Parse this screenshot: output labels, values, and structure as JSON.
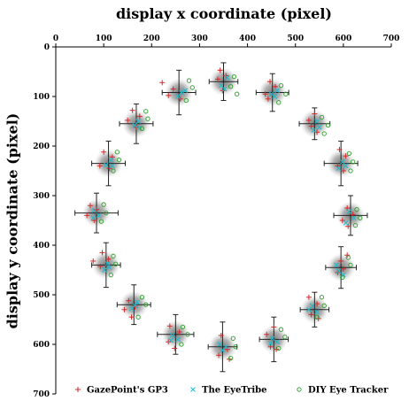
{
  "chart_data": {
    "type": "scatter",
    "xlabel": "display x coordinate (pixel)",
    "ylabel": "display y coordinate (pixel)",
    "xlim": [
      0,
      700
    ],
    "ylim": [
      0,
      700
    ],
    "y_inverted": true,
    "x_axis_position": "top",
    "x_ticks": [
      "0",
      "100",
      "200",
      "300",
      "400",
      "500",
      "600",
      "700"
    ],
    "y_ticks": [
      "0",
      "100",
      "200",
      "300",
      "400",
      "500",
      "600",
      "700"
    ],
    "grid": false,
    "legend_position": "bottom",
    "targets": [
      {
        "x": 350,
        "y": 70,
        "sdx": 30,
        "sdy": 38
      },
      {
        "x": 452,
        "y": 92,
        "sdx": 34,
        "sdy": 38
      },
      {
        "x": 540,
        "y": 155,
        "sdx": 32,
        "sdy": 32
      },
      {
        "x": 595,
        "y": 235,
        "sdx": 35,
        "sdy": 45
      },
      {
        "x": 615,
        "y": 340,
        "sdx": 35,
        "sdy": 40
      },
      {
        "x": 595,
        "y": 445,
        "sdx": 32,
        "sdy": 42
      },
      {
        "x": 540,
        "y": 530,
        "sdx": 30,
        "sdy": 35
      },
      {
        "x": 455,
        "y": 590,
        "sdx": 30,
        "sdy": 45
      },
      {
        "x": 348,
        "y": 605,
        "sdx": 30,
        "sdy": 50
      },
      {
        "x": 250,
        "y": 580,
        "sdx": 38,
        "sdy": 40
      },
      {
        "x": 163,
        "y": 520,
        "sdx": 35,
        "sdy": 40
      },
      {
        "x": 105,
        "y": 440,
        "sdx": 30,
        "sdy": 45
      },
      {
        "x": 85,
        "y": 335,
        "sdx": 45,
        "sdy": 40
      },
      {
        "x": 110,
        "y": 235,
        "sdx": 35,
        "sdy": 45
      },
      {
        "x": 168,
        "y": 155,
        "sdx": 35,
        "sdy": 40
      },
      {
        "x": 257,
        "y": 92,
        "sdx": 35,
        "sdy": 45
      }
    ],
    "series": [
      {
        "name": "GazePoint's GP3",
        "marker": "plus",
        "color": "#d62728",
        "points": [
          [
            343,
            47
          ],
          [
            355,
            58
          ],
          [
            338,
            65
          ],
          [
            348,
            88
          ],
          [
            447,
            70
          ],
          [
            458,
            80
          ],
          [
            437,
            95
          ],
          [
            443,
            105
          ],
          [
            540,
            135
          ],
          [
            528,
            148
          ],
          [
            533,
            160
          ],
          [
            545,
            172
          ],
          [
            592,
            207
          ],
          [
            605,
            220
          ],
          [
            588,
            240
          ],
          [
            600,
            250
          ],
          [
            608,
            325
          ],
          [
            620,
            338
          ],
          [
            598,
            350
          ],
          [
            610,
            362
          ],
          [
            608,
            420
          ],
          [
            595,
            432
          ],
          [
            588,
            455
          ],
          [
            600,
            448
          ],
          [
            528,
            505
          ],
          [
            545,
            518
          ],
          [
            533,
            540
          ],
          [
            548,
            548
          ],
          [
            455,
            565
          ],
          [
            440,
            580
          ],
          [
            448,
            605
          ],
          [
            460,
            610
          ],
          [
            345,
            582
          ],
          [
            358,
            610
          ],
          [
            340,
            622
          ],
          [
            362,
            630
          ],
          [
            238,
            563
          ],
          [
            258,
            575
          ],
          [
            235,
            595
          ],
          [
            248,
            608
          ],
          [
            152,
            512
          ],
          [
            165,
            525
          ],
          [
            143,
            530
          ],
          [
            158,
            545
          ],
          [
            97,
            415
          ],
          [
            110,
            428
          ],
          [
            78,
            432
          ],
          [
            93,
            443
          ],
          [
            72,
            320
          ],
          [
            85,
            328
          ],
          [
            65,
            340
          ],
          [
            80,
            350
          ],
          [
            100,
            212
          ],
          [
            118,
            222
          ],
          [
            92,
            240
          ],
          [
            112,
            245
          ],
          [
            160,
            128
          ],
          [
            175,
            140
          ],
          [
            150,
            148
          ],
          [
            168,
            162
          ],
          [
            222,
            72
          ],
          [
            245,
            85
          ],
          [
            235,
            98
          ],
          [
            260,
            105
          ]
        ]
      },
      {
        "name": "The EyeTribe",
        "marker": "x",
        "color": "#17becf",
        "points": [
          [
            358,
            62
          ],
          [
            345,
            78
          ],
          [
            352,
            85
          ],
          [
            462,
            88
          ],
          [
            450,
            95
          ],
          [
            457,
            100
          ],
          [
            545,
            150
          ],
          [
            550,
            162
          ],
          [
            538,
            168
          ],
          [
            598,
            232
          ],
          [
            605,
            240
          ],
          [
            590,
            245
          ],
          [
            612,
            332
          ],
          [
            622,
            345
          ],
          [
            605,
            355
          ],
          [
            590,
            452
          ],
          [
            600,
            460
          ],
          [
            585,
            440
          ],
          [
            535,
            522
          ],
          [
            545,
            535
          ],
          [
            528,
            530
          ],
          [
            452,
            588
          ],
          [
            462,
            595
          ],
          [
            448,
            598
          ],
          [
            342,
            600
          ],
          [
            355,
            605
          ],
          [
            348,
            612
          ],
          [
            243,
            582
          ],
          [
            255,
            590
          ],
          [
            240,
            592
          ],
          [
            165,
            522
          ],
          [
            158,
            528
          ],
          [
            170,
            515
          ],
          [
            108,
            437
          ],
          [
            102,
            450
          ],
          [
            112,
            445
          ],
          [
            80,
            330
          ],
          [
            90,
            340
          ],
          [
            78,
            345
          ],
          [
            115,
            228
          ],
          [
            105,
            238
          ],
          [
            118,
            240
          ],
          [
            172,
            150
          ],
          [
            165,
            158
          ],
          [
            175,
            163
          ],
          [
            262,
            92
          ],
          [
            255,
            100
          ],
          [
            270,
            88
          ]
        ]
      },
      {
        "name": "DIY Eye Tracker",
        "marker": "circle",
        "color": "#2ca02c",
        "points": [
          [
            372,
            60
          ],
          [
            365,
            80
          ],
          [
            378,
            95
          ],
          [
            470,
            78
          ],
          [
            480,
            95
          ],
          [
            465,
            112
          ],
          [
            555,
            142
          ],
          [
            568,
            158
          ],
          [
            560,
            175
          ],
          [
            612,
            215
          ],
          [
            620,
            232
          ],
          [
            615,
            250
          ],
          [
            628,
            328
          ],
          [
            635,
            345
          ],
          [
            625,
            360
          ],
          [
            610,
            425
          ],
          [
            615,
            440
          ],
          [
            598,
            465
          ],
          [
            555,
            505
          ],
          [
            560,
            522
          ],
          [
            545,
            545
          ],
          [
            470,
            570
          ],
          [
            478,
            585
          ],
          [
            465,
            608
          ],
          [
            370,
            588
          ],
          [
            375,
            605
          ],
          [
            365,
            628
          ],
          [
            265,
            565
          ],
          [
            275,
            580
          ],
          [
            262,
            600
          ],
          [
            180,
            505
          ],
          [
            188,
            520
          ],
          [
            172,
            545
          ],
          [
            120,
            422
          ],
          [
            125,
            438
          ],
          [
            115,
            460
          ],
          [
            100,
            318
          ],
          [
            105,
            335
          ],
          [
            95,
            352
          ],
          [
            128,
            212
          ],
          [
            132,
            228
          ],
          [
            120,
            250
          ],
          [
            188,
            130
          ],
          [
            192,
            145
          ],
          [
            180,
            165
          ],
          [
            278,
            68
          ],
          [
            285,
            82
          ],
          [
            272,
            108
          ]
        ]
      }
    ]
  }
}
